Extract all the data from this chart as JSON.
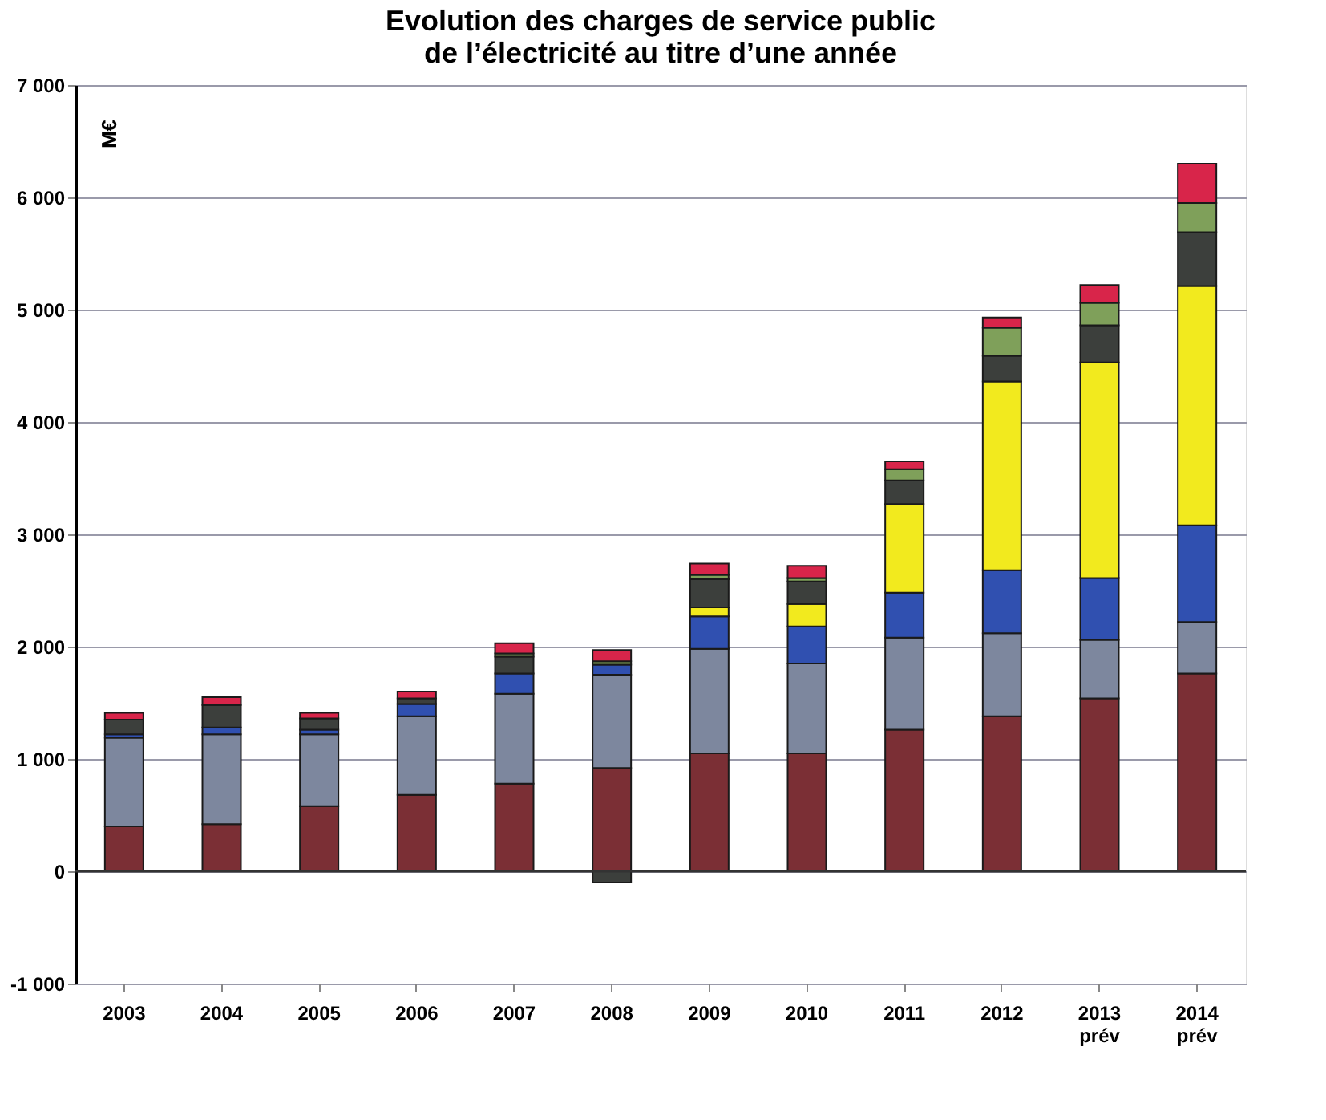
{
  "chart_data": {
    "type": "bar",
    "stacked": true,
    "title": "Evolution des charges de service public\nde l’électricité au titre d’une année",
    "ylabel": "M€",
    "categories": [
      "2003",
      "2004",
      "2005",
      "2006",
      "2007",
      "2008",
      "2009",
      "2010",
      "2011",
      "2012",
      "2013\nprév",
      "2014\nprév"
    ],
    "series": [
      {
        "color": "#7b2f35",
        "values": [
          400,
          420,
          580,
          680,
          780,
          920,
          1050,
          1050,
          1260,
          1380,
          1540,
          1760
        ]
      },
      {
        "color": "#7d879e",
        "values": [
          790,
          800,
          640,
          700,
          800,
          830,
          930,
          800,
          820,
          740,
          520,
          460
        ]
      },
      {
        "color": "#3050b0",
        "values": [
          30,
          60,
          40,
          110,
          180,
          90,
          290,
          330,
          400,
          560,
          550,
          860
        ]
      },
      {
        "color": "#f2ea1e",
        "values": [
          null,
          null,
          null,
          null,
          null,
          null,
          80,
          200,
          790,
          1680,
          1920,
          2130
        ]
      },
      {
        "color": "#3c3f3c",
        "values": [
          130,
          200,
          100,
          50,
          150,
          -100,
          250,
          200,
          210,
          230,
          330,
          480
        ]
      },
      {
        "color": "#7fa05a",
        "values": [
          null,
          null,
          null,
          null,
          30,
          30,
          40,
          30,
          100,
          250,
          200,
          260
        ]
      },
      {
        "color": "#d8254a",
        "values": [
          60,
          70,
          50,
          60,
          90,
          100,
          100,
          110,
          70,
          90,
          160,
          350
        ]
      }
    ],
    "ylim": [
      -1000,
      7000
    ],
    "yticks": [
      {
        "value": -1000,
        "label": "-1 000"
      },
      0,
      {
        "value": 1000,
        "label": "1 000"
      },
      {
        "value": 2000,
        "label": "2 000"
      },
      {
        "value": 3000,
        "label": "3 000"
      },
      {
        "value": 4000,
        "label": "4 000"
      },
      {
        "value": 5000,
        "label": "5 000"
      },
      {
        "value": 6000,
        "label": "6 000"
      },
      {
        "value": 7000,
        "label": "7 000"
      }
    ],
    "grid": "y"
  }
}
